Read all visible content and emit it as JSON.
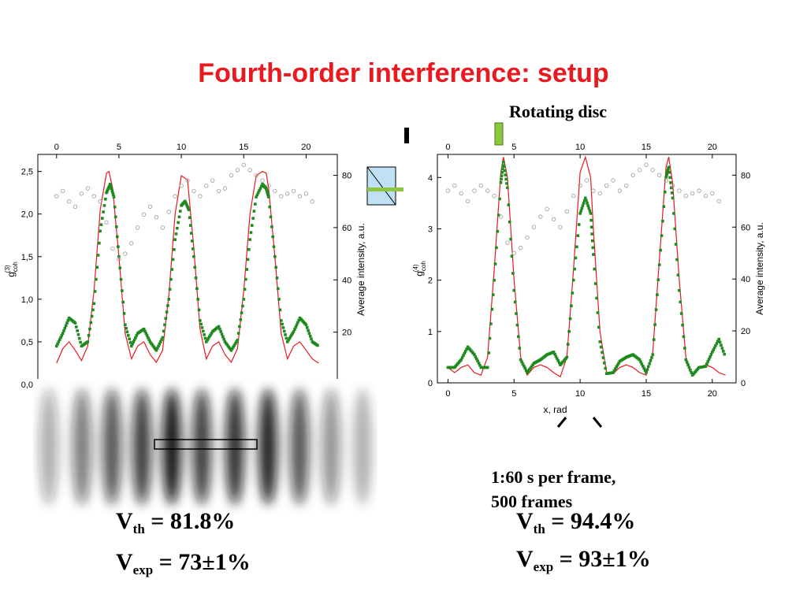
{
  "slide": {
    "title": "Fourth-order interference: setup",
    "rotating_disc_label": "Rotating disc",
    "frames_note_line1": "1:60 s per frame,",
    "frames_note_line2": "500 frames",
    "formulas": {
      "left_th": {
        "symbol": "V",
        "sub": "th",
        "rhs": "= 81.8%"
      },
      "left_exp": {
        "symbol": "V",
        "sub": "exp",
        "rhs": "= 73±1%"
      },
      "right_th": {
        "symbol": "V",
        "sub": "th",
        "rhs": "= 94.4%"
      },
      "right_exp": {
        "symbol": "V",
        "sub": "exp",
        "rhs": "= 93±1%"
      }
    },
    "colors": {
      "title": "#e8191f",
      "theory": "#e8191f",
      "experiment": "#1f8a1f",
      "intensity": "#9a9a9a",
      "disc": "#8dc63f"
    }
  },
  "chart_data": [
    {
      "type": "line",
      "x_top_ticks": [
        "0",
        "5",
        "10",
        "15",
        "20"
      ],
      "x_range": [
        -1.5,
        22.5
      ],
      "ylabel": "g_coh^(3)",
      "ylim": [
        0,
        2.7
      ],
      "y_ticks": [
        "0,0",
        "0,5",
        "1,0",
        "1,5",
        "2,0",
        "2,5"
      ],
      "y2label": "Average intensity, a.u.",
      "y2lim": [
        0,
        88
      ],
      "y2_ticks": [
        "20",
        "40",
        "60",
        "80"
      ],
      "series": [
        {
          "role": "theory",
          "color": "#e8191f",
          "style": "line",
          "x": [
            0,
            0.5,
            1,
            1.5,
            2,
            2.5,
            3,
            3.5,
            4,
            4.2,
            4.5,
            5,
            5.5,
            6,
            6.5,
            7,
            7.5,
            8,
            8.5,
            9,
            9.5,
            10,
            10.5,
            11,
            11.5,
            12,
            12.5,
            13,
            13.5,
            14,
            14.5,
            15,
            15.5,
            16,
            16.5,
            16.8,
            17,
            17.5,
            18,
            18.5,
            19,
            19.5,
            20,
            20.5,
            21
          ],
          "y": [
            0.25,
            0.42,
            0.5,
            0.4,
            0.28,
            0.45,
            1.1,
            2.05,
            2.48,
            2.5,
            2.3,
            1.5,
            0.6,
            0.3,
            0.45,
            0.5,
            0.35,
            0.26,
            0.4,
            1.05,
            2.0,
            2.45,
            2.4,
            1.6,
            0.65,
            0.3,
            0.45,
            0.5,
            0.35,
            0.26,
            0.42,
            1.1,
            2.0,
            2.45,
            2.5,
            2.48,
            2.3,
            1.5,
            0.6,
            0.3,
            0.45,
            0.5,
            0.4,
            0.3,
            0.25
          ]
        },
        {
          "role": "experiment",
          "color": "#1f8a1f",
          "style": "dots",
          "x": [
            0,
            0.5,
            1,
            1.5,
            2,
            2.5,
            3,
            3.5,
            4,
            4.3,
            4.6,
            5,
            5.5,
            6,
            6.5,
            7,
            7.5,
            8,
            8.5,
            9,
            9.5,
            10,
            10.3,
            10.6,
            11,
            11.5,
            12,
            12.5,
            13,
            13.5,
            14,
            14.5,
            15,
            15.5,
            16,
            16.5,
            16.8,
            17,
            17.5,
            18,
            18.5,
            19,
            19.5,
            20,
            20.5,
            21
          ],
          "y": [
            0.45,
            0.6,
            0.78,
            0.72,
            0.45,
            0.5,
            0.95,
            1.8,
            2.25,
            2.35,
            2.2,
            1.5,
            0.7,
            0.45,
            0.6,
            0.65,
            0.5,
            0.4,
            0.55,
            1.0,
            1.7,
            2.1,
            2.15,
            2.05,
            1.5,
            0.75,
            0.5,
            0.62,
            0.68,
            0.5,
            0.4,
            0.52,
            1.0,
            1.7,
            2.2,
            2.35,
            2.3,
            2.2,
            1.5,
            0.75,
            0.5,
            0.62,
            0.78,
            0.7,
            0.5,
            0.45
          ]
        },
        {
          "role": "intensity",
          "color": "#9a9a9a",
          "style": "circles",
          "axis": "y2",
          "x": [
            0,
            0.5,
            1,
            1.5,
            2,
            2.5,
            3,
            3.5,
            4,
            4.5,
            5,
            5.5,
            6,
            6.5,
            7,
            7.5,
            8,
            8.5,
            9,
            9.5,
            10,
            10.5,
            11,
            11.5,
            12,
            12.5,
            13,
            13.5,
            14,
            14.5,
            15,
            15.5,
            16,
            16.5,
            17,
            17.5,
            18,
            18.5,
            19,
            19.5,
            20,
            20.5
          ],
          "y": [
            72,
            74,
            70,
            68,
            73,
            75,
            72,
            70,
            62,
            52,
            48,
            50,
            54,
            60,
            65,
            68,
            64,
            60,
            66,
            72,
            76,
            78,
            74,
            72,
            76,
            78,
            74,
            75,
            80,
            82,
            84,
            82,
            80,
            78,
            76,
            74,
            72,
            73,
            74,
            72,
            73,
            70
          ]
        }
      ]
    },
    {
      "type": "line",
      "x_top_ticks": [
        "0",
        "5",
        "10",
        "15",
        "20"
      ],
      "x_bottom_ticks": [
        "0",
        "5",
        "10",
        "15",
        "20"
      ],
      "xlabel": "x, rad",
      "x_range": [
        -0.8,
        21.8
      ],
      "ylabel": "g_coh^(4)",
      "ylim": [
        0,
        4.45
      ],
      "y_ticks": [
        "0",
        "1",
        "2",
        "3",
        "4"
      ],
      "y2label": "Average intensity, a.u.",
      "y2lim": [
        0,
        88
      ],
      "y2_ticks": [
        "0",
        "20",
        "40",
        "60",
        "80"
      ],
      "series": [
        {
          "role": "theory",
          "color": "#e8191f",
          "style": "line",
          "x": [
            0,
            0.5,
            1,
            1.5,
            2,
            2.5,
            3,
            3.5,
            4,
            4.2,
            4.5,
            5,
            5.5,
            6,
            6.5,
            7,
            7.5,
            8,
            8.5,
            9,
            9.5,
            10,
            10.4,
            10.8,
            11,
            11.5,
            12,
            12.5,
            13,
            13.5,
            14,
            14.5,
            15,
            15.5,
            16,
            16.5,
            16.7,
            17,
            17.5,
            18,
            18.5,
            19,
            19.5,
            20,
            20.5,
            21
          ],
          "y": [
            0.3,
            0.2,
            0.3,
            0.35,
            0.2,
            0.15,
            0.5,
            2.2,
            4.1,
            4.4,
            4.0,
            2.0,
            0.5,
            0.15,
            0.3,
            0.35,
            0.3,
            0.2,
            0.12,
            0.5,
            2.2,
            4.1,
            4.4,
            4.0,
            3.0,
            1.0,
            0.2,
            0.18,
            0.3,
            0.35,
            0.3,
            0.2,
            0.15,
            0.6,
            2.4,
            4.2,
            4.4,
            3.9,
            2.0,
            0.5,
            0.15,
            0.3,
            0.35,
            0.3,
            0.2,
            0.15
          ]
        },
        {
          "role": "experiment",
          "color": "#1f8a1f",
          "style": "dots",
          "x": [
            0,
            0.5,
            1,
            1.5,
            2,
            2.5,
            3,
            3.5,
            4,
            4.2,
            4.5,
            5,
            5.5,
            6,
            6.5,
            7,
            7.5,
            8,
            8.5,
            9,
            9.5,
            10,
            10.4,
            10.8,
            11,
            11.5,
            12,
            12.5,
            13,
            13.5,
            14,
            14.5,
            15,
            15.5,
            16,
            16.5,
            16.7,
            17,
            17.5,
            18,
            18.5,
            19,
            19.5,
            20,
            20.5,
            21
          ],
          "y": [
            0.3,
            0.3,
            0.45,
            0.7,
            0.55,
            0.3,
            0.3,
            2.0,
            3.9,
            4.3,
            3.8,
            1.8,
            0.45,
            0.2,
            0.38,
            0.45,
            0.55,
            0.6,
            0.35,
            0.5,
            2.0,
            3.3,
            3.6,
            3.3,
            2.5,
            0.8,
            0.18,
            0.2,
            0.42,
            0.5,
            0.55,
            0.45,
            0.2,
            0.55,
            2.3,
            4.0,
            4.2,
            3.6,
            1.8,
            0.45,
            0.15,
            0.3,
            0.32,
            0.6,
            0.85,
            0.5
          ]
        },
        {
          "role": "intensity",
          "color": "#9a9a9a",
          "style": "circles",
          "axis": "y2",
          "x": [
            0,
            0.5,
            1,
            1.5,
            2,
            2.5,
            3,
            3.5,
            4,
            4.5,
            5,
            5.5,
            6,
            6.5,
            7,
            7.5,
            8,
            8.5,
            9,
            9.5,
            10,
            10.5,
            11,
            11.5,
            12,
            12.5,
            13,
            13.5,
            14,
            14.5,
            15,
            15.5,
            16,
            16.5,
            17,
            17.5,
            18,
            18.5,
            19,
            19.5,
            20,
            20.5
          ],
          "y": [
            74,
            76,
            73,
            70,
            74,
            76,
            74,
            72,
            64,
            54,
            50,
            52,
            56,
            60,
            64,
            67,
            63,
            60,
            66,
            72,
            76,
            78,
            74,
            73,
            76,
            78,
            74,
            76,
            80,
            82,
            84,
            82,
            80,
            78,
            76,
            74,
            72,
            73,
            74,
            72,
            73,
            70
          ]
        }
      ]
    }
  ]
}
